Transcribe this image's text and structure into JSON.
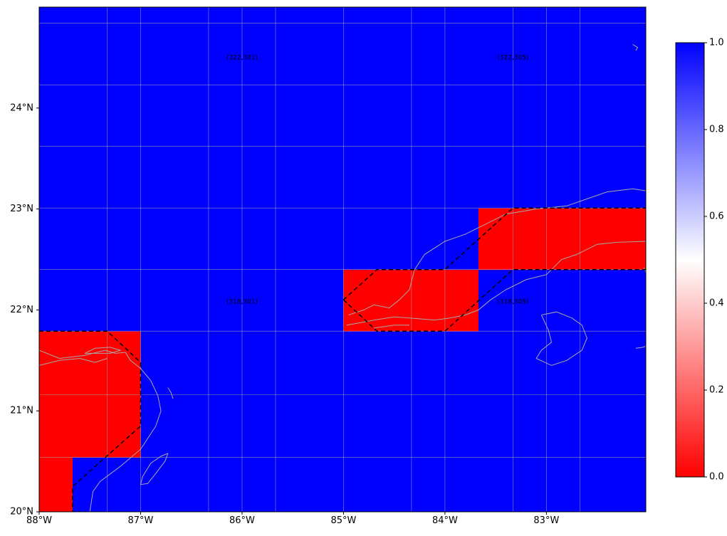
{
  "map": {
    "extent": {
      "lon_min": -88,
      "lon_max": -82.02,
      "lat_min": 20,
      "lat_max": 25
    },
    "land_outline_color": "#a8a8a8",
    "gridline_color": "#b0b0b0",
    "projection": "PlateCarree",
    "cells": {
      "lon_edges": [
        -88,
        -87.67,
        -87,
        -85,
        -83.67,
        -82.02
      ],
      "lat_edges": [
        20,
        20.54,
        21.79,
        22.4,
        23.01,
        25
      ],
      "values": [
        [
          0,
          1,
          1,
          1,
          1
        ],
        [
          0,
          0,
          1,
          1,
          1
        ],
        [
          1,
          1,
          1,
          0,
          1
        ],
        [
          1,
          1,
          1,
          1,
          0
        ],
        [
          1,
          1,
          1,
          1,
          1
        ]
      ]
    },
    "gridlines": {
      "lons": [
        -88,
        -87.33,
        -87,
        -86.33,
        -86,
        -85.67,
        -85,
        -84.33,
        -84,
        -83.33,
        -83,
        -82.67
      ],
      "lats": [
        20.54,
        21.16,
        21.79,
        22.4,
        23.01,
        23.62,
        24.23,
        24.84
      ]
    },
    "x_ticks": [
      {
        "lon": -88,
        "label": "88°W"
      },
      {
        "lon": -87,
        "label": "87°W"
      },
      {
        "lon": -86,
        "label": "86°W"
      },
      {
        "lon": -85,
        "label": "85°W"
      },
      {
        "lon": -84,
        "label": "84°W"
      },
      {
        "lon": -83,
        "label": "83°W"
      }
    ],
    "y_ticks": [
      {
        "lat": 20,
        "label": "20°N"
      },
      {
        "lat": 21,
        "label": "21°N"
      },
      {
        "lat": 22,
        "label": "22°N"
      },
      {
        "lat": 23,
        "label": "23°N"
      },
      {
        "lat": 24,
        "label": "24°N"
      }
    ],
    "annotations": [
      {
        "lon": -86.0,
        "lat": 24.5,
        "text": "(322,301)"
      },
      {
        "lon": -83.33,
        "lat": 24.5,
        "text": "(322,305)"
      },
      {
        "lon": -86.0,
        "lat": 22.08,
        "text": "(318,301)"
      },
      {
        "lon": -83.33,
        "lat": 22.08,
        "text": "(318,305)"
      }
    ],
    "dashed_outlines": [
      [
        [
          -88,
          21.79
        ],
        [
          -87.33,
          21.79
        ],
        [
          -87,
          21.48
        ],
        [
          -87,
          20.85
        ],
        [
          -87.67,
          20.25
        ],
        [
          -87.67,
          20
        ]
      ],
      [
        [
          -85,
          22.1
        ],
        [
          -84.67,
          22.4
        ],
        [
          -84,
          22.4
        ],
        [
          -83.33,
          23.01
        ],
        [
          -82.02,
          23.01
        ]
      ],
      [
        [
          -85,
          22.1
        ],
        [
          -84.67,
          21.79
        ],
        [
          -84,
          21.79
        ],
        [
          -83.33,
          22.4
        ],
        [
          -82.02,
          22.4
        ]
      ]
    ],
    "coastlines": [
      [
        [
          -88,
          21.6
        ],
        [
          -87.8,
          21.52
        ],
        [
          -87.55,
          21.55
        ],
        [
          -87.35,
          21.6
        ],
        [
          -87.25,
          21.57
        ],
        [
          -87.15,
          21.58
        ],
        [
          -87.1,
          21.5
        ],
        [
          -87.0,
          21.42
        ],
        [
          -86.9,
          21.3
        ],
        [
          -86.83,
          21.15
        ],
        [
          -86.8,
          21.0
        ],
        [
          -86.85,
          20.85
        ],
        [
          -87.0,
          20.62
        ],
        [
          -87.2,
          20.45
        ],
        [
          -87.4,
          20.3
        ],
        [
          -87.47,
          20.2
        ],
        [
          -87.5,
          20.0
        ]
      ],
      [
        [
          -88,
          21.45
        ],
        [
          -87.8,
          21.5
        ],
        [
          -87.6,
          21.52
        ],
        [
          -87.45,
          21.48
        ],
        [
          -87.33,
          21.52
        ]
      ],
      [
        [
          -87.55,
          21.57
        ],
        [
          -87.45,
          21.62
        ],
        [
          -87.3,
          21.63
        ],
        [
          -87.2,
          21.6
        ],
        [
          -87.3,
          21.57
        ],
        [
          -87.55,
          21.57
        ]
      ],
      [
        [
          -86.73,
          21.23
        ],
        [
          -86.7,
          21.18
        ],
        [
          -86.68,
          21.12
        ]
      ],
      [
        [
          -86.73,
          20.58
        ],
        [
          -86.8,
          20.55
        ],
        [
          -86.9,
          20.48
        ],
        [
          -86.98,
          20.35
        ],
        [
          -87.0,
          20.27
        ],
        [
          -86.93,
          20.28
        ],
        [
          -86.85,
          20.38
        ],
        [
          -86.76,
          20.5
        ],
        [
          -86.73,
          20.58
        ]
      ],
      [
        [
          -84.97,
          21.85
        ],
        [
          -84.85,
          21.87
        ],
        [
          -84.7,
          21.9
        ],
        [
          -84.5,
          21.93
        ],
        [
          -84.35,
          21.92
        ],
        [
          -84.1,
          21.9
        ],
        [
          -83.95,
          21.92
        ],
        [
          -83.8,
          21.95
        ],
        [
          -83.67,
          22.0
        ],
        [
          -83.55,
          22.1
        ],
        [
          -83.4,
          22.2
        ],
        [
          -83.2,
          22.3
        ],
        [
          -83.0,
          22.35
        ],
        [
          -82.85,
          22.5
        ],
        [
          -82.7,
          22.55
        ],
        [
          -82.5,
          22.65
        ],
        [
          -82.3,
          22.67
        ],
        [
          -82.02,
          22.68
        ]
      ],
      [
        [
          -84.95,
          21.95
        ],
        [
          -84.8,
          22.0
        ],
        [
          -84.7,
          22.05
        ],
        [
          -84.55,
          22.02
        ],
        [
          -84.45,
          22.1
        ],
        [
          -84.35,
          22.2
        ],
        [
          -84.3,
          22.4
        ],
        [
          -84.2,
          22.55
        ],
        [
          -84.0,
          22.68
        ],
        [
          -83.8,
          22.75
        ],
        [
          -83.6,
          22.85
        ],
        [
          -83.4,
          22.95
        ],
        [
          -83.1,
          23.0
        ],
        [
          -82.8,
          23.03
        ],
        [
          -82.6,
          23.1
        ],
        [
          -82.4,
          23.17
        ],
        [
          -82.15,
          23.2
        ],
        [
          -82.02,
          23.18
        ]
      ],
      [
        [
          -84.7,
          21.82
        ],
        [
          -84.5,
          21.85
        ],
        [
          -84.35,
          21.85
        ]
      ],
      [
        [
          -83.05,
          21.95
        ],
        [
          -82.9,
          21.98
        ],
        [
          -82.75,
          21.92
        ],
        [
          -82.65,
          21.85
        ],
        [
          -82.6,
          21.72
        ],
        [
          -82.65,
          21.6
        ],
        [
          -82.8,
          21.5
        ],
        [
          -82.95,
          21.45
        ],
        [
          -83.1,
          21.52
        ],
        [
          -83.05,
          21.6
        ],
        [
          -82.95,
          21.68
        ],
        [
          -82.98,
          21.8
        ],
        [
          -83.05,
          21.95
        ]
      ],
      [
        [
          -82.12,
          21.62
        ],
        [
          -82.05,
          21.63
        ],
        [
          -82.02,
          21.64
        ]
      ],
      [
        [
          -82.04,
          22.42
        ],
        [
          -82.02,
          22.37
        ],
        [
          -82.02,
          22.3
        ]
      ],
      [
        [
          -82.15,
          24.63
        ],
        [
          -82.1,
          24.6
        ],
        [
          -82.12,
          24.57
        ]
      ]
    ]
  },
  "colorbar": {
    "colors": {
      "low": "#ff0000",
      "mid": "#ffffff",
      "high": "#0000ff"
    },
    "range": [
      0,
      1
    ],
    "ticks": [
      {
        "value": 0.0,
        "label": "0.0"
      },
      {
        "value": 0.2,
        "label": "0.2"
      },
      {
        "value": 0.4,
        "label": "0.4"
      },
      {
        "value": 0.6,
        "label": "0.6"
      },
      {
        "value": 0.8,
        "label": "0.8"
      },
      {
        "value": 1.0,
        "label": "1.0"
      }
    ]
  }
}
